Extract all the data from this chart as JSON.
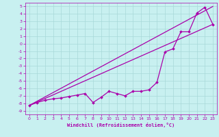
{
  "xlabel": "Windchill (Refroidissement éolien,°C)",
  "bg_color": "#c8f0f0",
  "grid_color": "#a8d8d8",
  "line_color": "#aa00aa",
  "x_ticks": [
    0,
    1,
    2,
    3,
    4,
    5,
    6,
    7,
    8,
    9,
    10,
    11,
    12,
    13,
    14,
    15,
    16,
    17,
    18,
    19,
    20,
    21,
    22,
    23
  ],
  "y_ticks": [
    5,
    4,
    3,
    2,
    1,
    0,
    -1,
    -2,
    -3,
    -4,
    -5,
    -6,
    -7,
    -8,
    -9
  ],
  "ylim": [
    -9.5,
    5.5
  ],
  "xlim": [
    -0.5,
    23.5
  ],
  "line1_x": [
    0,
    1,
    2,
    3,
    4,
    5,
    6,
    7,
    8,
    9,
    10,
    11,
    12,
    13,
    14,
    15,
    16,
    17,
    18,
    19,
    20,
    21,
    22,
    23
  ],
  "line1_y": [
    -8.3,
    -7.9,
    -7.6,
    -7.4,
    -7.3,
    -7.1,
    -6.9,
    -6.7,
    -7.9,
    -7.2,
    -6.4,
    -6.7,
    -7.0,
    -6.4,
    -6.4,
    -6.2,
    -5.2,
    -1.1,
    -0.7,
    1.6,
    1.6,
    4.1,
    4.9,
    2.6
  ],
  "line2_x": [
    0,
    23
  ],
  "line2_y": [
    -8.3,
    2.6
  ],
  "line3_x": [
    0,
    23
  ],
  "line3_y": [
    -8.3,
    5.0
  ]
}
